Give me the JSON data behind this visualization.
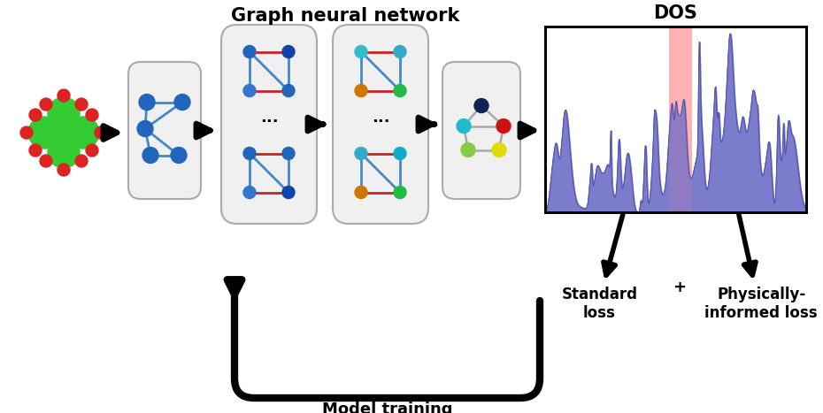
{
  "title": "Graph neural network",
  "bg_color": "#ffffff",
  "dos_label": "DOS",
  "standard_loss_label": "Standard\nloss",
  "physically_informed_label": "Physically-\ninformed loss",
  "model_training_label": "Model training",
  "plus_label": "+",
  "fig_width": 9.3,
  "fig_height": 4.67,
  "dpi": 100,
  "gnn_box1_blue_nodes": [
    "#2266bb",
    "#2266bb",
    "#2266bb",
    "#1144aa"
  ],
  "gnn_box2_top_nodes": [
    "#2266bb",
    "#1144aa",
    "#3377cc",
    "#2266bb"
  ],
  "gnn_box2_bot_nodes": [
    "#2266bb",
    "#2266bb",
    "#3377cc",
    "#1144aa"
  ],
  "gnn_box3_top_nodes": [
    "#33bbcc",
    "#33aacc",
    "#cc7700",
    "#22bb44"
  ],
  "gnn_box3_bot_nodes": [
    "#33aacc",
    "#11aacc",
    "#cc7700",
    "#22bb44"
  ],
  "gnn_box4_nodes": [
    "#112255",
    "#cc1111",
    "#22bbcc",
    "#88cc44",
    "#dddd00"
  ],
  "crystal_green": "#33cc33",
  "crystal_red": "#dd2222",
  "dos_fill": "#7777cc",
  "dos_edge": "#5555aa",
  "fermi_color": "#ff8888"
}
